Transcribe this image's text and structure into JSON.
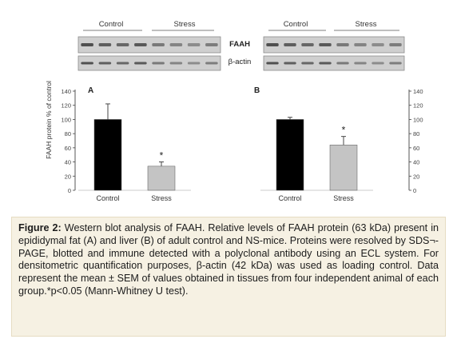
{
  "blot": {
    "left_panel": {
      "group_labels": [
        "Control",
        "Stress"
      ],
      "lane_count": 8
    },
    "right_panel": {
      "group_labels": [
        "Control",
        "Stress"
      ],
      "lane_count": 8
    },
    "row_labels": [
      "FAAH",
      "β-actin"
    ]
  },
  "chart_data": [
    {
      "type": "bar",
      "panel_label": "A",
      "title": "",
      "xlabel": "",
      "ylabel": "FAAH protein % of control",
      "categories": [
        "Control",
        "Stress"
      ],
      "values": [
        100,
        34
      ],
      "errors": [
        22,
        6
      ],
      "significance": [
        "",
        "*"
      ],
      "bar_colors": [
        "#000000",
        "#c4c4c4"
      ],
      "ylim": [
        0,
        140
      ],
      "yticks": [
        0,
        20,
        40,
        60,
        80,
        100,
        120,
        140
      ],
      "grid": false
    },
    {
      "type": "bar",
      "panel_label": "B",
      "title": "",
      "xlabel": "",
      "ylabel": "",
      "categories": [
        "Control",
        "Stress"
      ],
      "values": [
        100,
        64
      ],
      "errors": [
        3,
        12
      ],
      "significance": [
        "",
        "*"
      ],
      "bar_colors": [
        "#000000",
        "#c4c4c4"
      ],
      "ylim": [
        0,
        140
      ],
      "yticks": [
        0,
        20,
        40,
        60,
        80,
        100,
        120,
        140
      ],
      "grid": false
    }
  ],
  "caption": {
    "heading": "Figure 2:",
    "text": " Western blot analysis of FAAH. Relative levels of FAAH protein (63 kDa) present in epididymal fat (A) and liver (B) of adult control and NS-mice. Proteins were resolved by SDS¬-PAGE, blotted and immune detected with a polyclonal antibody using an ECL system. For densitometric quantification purposes, β-actin (42 kDa) was used as loading control. Data represent the mean ± SEM of values obtained in tissues from four independent animal of each group.*p<0.05 (Mann-Whitney U test)."
  }
}
